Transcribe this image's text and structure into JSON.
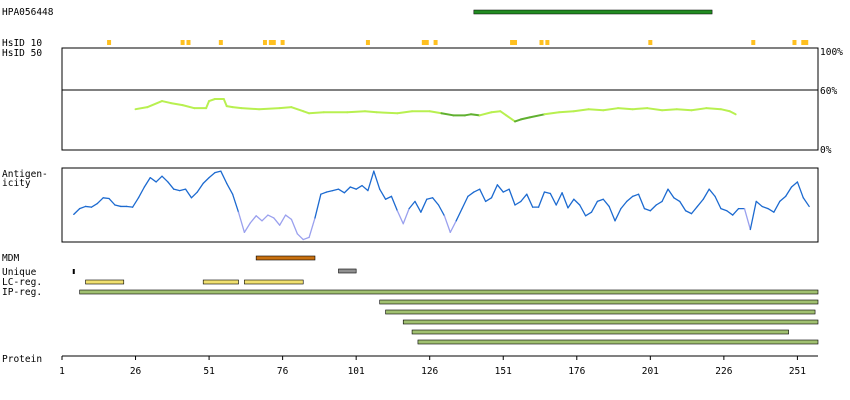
{
  "antibody": "HPA056448",
  "labels": {
    "hsid10": "HsID 10",
    "hsid50": "HsID 50",
    "antigenicity": [
      "Antigen-",
      "icity"
    ],
    "mdm": "MDM",
    "unique": "Unique",
    "lcreg": "LC-reg.",
    "ipreg": "IP-reg.",
    "protein": "Protein"
  },
  "colors": {
    "antigen_bar": "#228b22",
    "hsid_marks": "#ffc020",
    "identity_high": "#b8f050",
    "identity_low": "#60b030",
    "antigenicity_high": "#1c6ad0",
    "antigenicity_low": "#9aa0ee",
    "mdm": "#c87010",
    "unique": "#909090",
    "lcreg": "#f0e070",
    "ipreg": "#a0c070",
    "frame": "#000000"
  },
  "chart_data": {
    "type": "line",
    "protein_length": 258,
    "x_ticks": [
      1,
      26,
      51,
      76,
      101,
      126,
      151,
      176,
      201,
      226,
      251
    ],
    "antigen": {
      "start": 141,
      "end": 222
    },
    "hsid_marks": [
      17,
      42,
      44,
      55,
      70,
      72,
      73,
      76,
      105,
      124,
      125,
      128,
      154,
      155,
      164,
      166,
      201,
      236,
      250,
      253,
      254
    ],
    "identity": {
      "y_tick_labels": [
        "100%",
        "60%",
        "0%"
      ],
      "ylim": [
        0,
        100
      ],
      "x": [
        26,
        30,
        35,
        38,
        42,
        46,
        50,
        51,
        53,
        56,
        57,
        59,
        62,
        68,
        75,
        79,
        83,
        85,
        90,
        98,
        104,
        108,
        115,
        120,
        126,
        130,
        134,
        138,
        140,
        143,
        147,
        150,
        152,
        155,
        157,
        160,
        165,
        170,
        175,
        180,
        185,
        190,
        195,
        200,
        205,
        210,
        215,
        220,
        225,
        228,
        230
      ],
      "y": [
        40,
        42,
        48,
        46,
        44,
        41,
        41,
        48,
        50,
        50,
        43,
        42,
        41,
        40,
        41,
        42,
        38,
        36,
        37,
        37,
        38,
        37,
        36,
        38,
        38,
        36,
        34,
        34,
        35,
        34,
        37,
        38,
        34,
        28,
        30,
        32,
        35,
        37,
        38,
        40,
        39,
        41,
        40,
        41,
        39,
        40,
        39,
        41,
        40,
        38,
        35
      ],
      "low_segments": [
        [
          131,
          143
        ],
        [
          155,
          166
        ]
      ]
    },
    "antigenicity": {
      "ylim": [
        0,
        1
      ],
      "low_threshold": 0.35,
      "x": [
        5,
        7,
        9,
        11,
        13,
        15,
        17,
        19,
        21,
        23,
        25,
        27,
        29,
        31,
        33,
        35,
        37,
        39,
        41,
        43,
        45,
        47,
        49,
        51,
        53,
        55,
        57,
        59,
        61,
        63,
        65,
        67,
        69,
        71,
        73,
        75,
        77,
        79,
        81,
        83,
        85,
        87,
        89,
        91,
        93,
        95,
        97,
        99,
        101,
        103,
        105,
        107,
        109,
        111,
        113,
        115,
        117,
        119,
        121,
        123,
        125,
        127,
        129,
        131,
        133,
        135,
        137,
        139,
        141,
        143,
        145,
        147,
        149,
        151,
        153,
        155,
        157,
        159,
        161,
        163,
        165,
        167,
        169,
        171,
        173,
        175,
        177,
        179,
        181,
        183,
        185,
        187,
        189,
        191,
        193,
        195,
        197,
        199,
        201,
        203,
        205,
        207,
        209,
        211,
        213,
        215,
        217,
        219,
        221,
        223,
        225,
        227,
        229,
        231,
        233,
        235,
        237,
        239,
        241,
        243,
        245,
        247,
        249,
        251,
        253,
        255
      ],
      "y": [
        0.37,
        0.45,
        0.48,
        0.47,
        0.52,
        0.6,
        0.59,
        0.5,
        0.48,
        0.48,
        0.47,
        0.6,
        0.75,
        0.88,
        0.82,
        0.9,
        0.82,
        0.72,
        0.7,
        0.72,
        0.6,
        0.68,
        0.8,
        0.88,
        0.95,
        0.97,
        0.8,
        0.65,
        0.4,
        0.12,
        0.25,
        0.35,
        0.28,
        0.36,
        0.32,
        0.22,
        0.36,
        0.3,
        0.1,
        0.02,
        0.05,
        0.32,
        0.65,
        0.68,
        0.7,
        0.72,
        0.67,
        0.75,
        0.72,
        0.77,
        0.7,
        0.97,
        0.72,
        0.58,
        0.62,
        0.42,
        0.24,
        0.45,
        0.55,
        0.4,
        0.58,
        0.6,
        0.5,
        0.35,
        0.12,
        0.28,
        0.45,
        0.62,
        0.68,
        0.72,
        0.55,
        0.6,
        0.78,
        0.68,
        0.72,
        0.5,
        0.55,
        0.65,
        0.47,
        0.47,
        0.68,
        0.66,
        0.5,
        0.67,
        0.46,
        0.58,
        0.5,
        0.35,
        0.4,
        0.55,
        0.58,
        0.48,
        0.28,
        0.45,
        0.55,
        0.62,
        0.65,
        0.45,
        0.42,
        0.5,
        0.55,
        0.72,
        0.6,
        0.55,
        0.42,
        0.38,
        0.48,
        0.58,
        0.72,
        0.62,
        0.45,
        0.42,
        0.36,
        0.45,
        0.45,
        0.16,
        0.55,
        0.48,
        0.45,
        0.4,
        0.55,
        0.62,
        0.75,
        0.82,
        0.6,
        0.48
      ]
    },
    "tracks": {
      "mdm": [
        [
          67,
          87
        ]
      ],
      "unique": [
        [
          5,
          5
        ],
        [
          95,
          101
        ]
      ],
      "lcreg": [
        [
          9,
          22
        ],
        [
          49,
          61
        ],
        [
          63,
          83
        ]
      ],
      "ipreg": [
        [
          7,
          258
        ],
        [
          109,
          258
        ],
        [
          111,
          257
        ],
        [
          117,
          258
        ],
        [
          120,
          248
        ],
        [
          122,
          258
        ]
      ]
    }
  }
}
